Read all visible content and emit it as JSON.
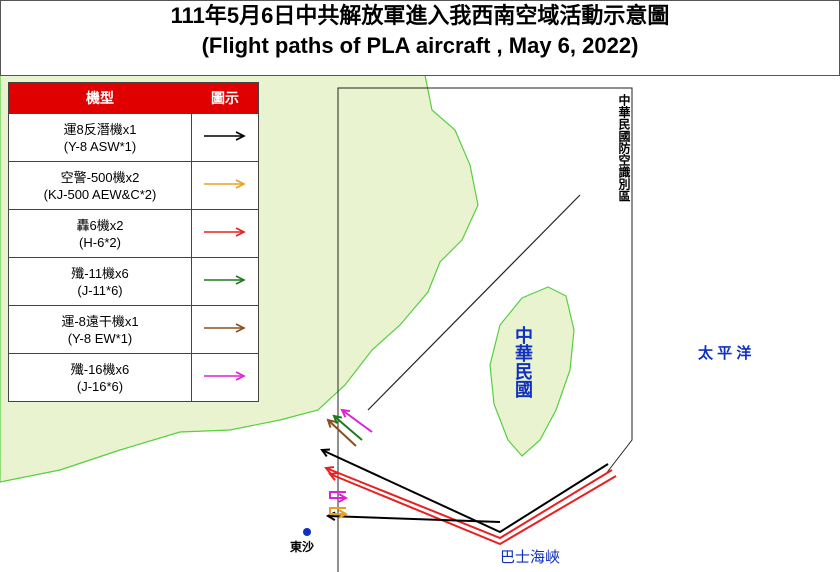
{
  "header": {
    "title": "111年5月6日中共解放軍進入我西南空域活動示意圖",
    "subtitle": "(Flight paths of PLA aircraft , May 6, 2022)"
  },
  "legend": {
    "columns": [
      "機型",
      "圖示"
    ],
    "rows": [
      {
        "name": "運8反潛機x1",
        "code": "(Y-8 ASW*1)",
        "color": "#000000"
      },
      {
        "name": "空警-500機x2",
        "code": "(KJ-500 AEW&C*2)",
        "color": "#e8a020"
      },
      {
        "name": "轟6機x2",
        "code": "(H-6*2)",
        "color": "#e82020"
      },
      {
        "name": "殲-11機x6",
        "code": "(J-11*6)",
        "color": "#207a20"
      },
      {
        "name": "運-8遠干機x1",
        "code": "(Y-8 EW*1)",
        "color": "#8a5020"
      },
      {
        "name": "殲-16機x6",
        "code": "(J-16*6)",
        "color": "#e020d8"
      }
    ]
  },
  "labels": {
    "adiz": "中華民國防空識別區",
    "taiwan": "中華民國",
    "pacific": "太 平 洋",
    "dongsha": "東沙",
    "bashi": "巴士海峽"
  }
}
